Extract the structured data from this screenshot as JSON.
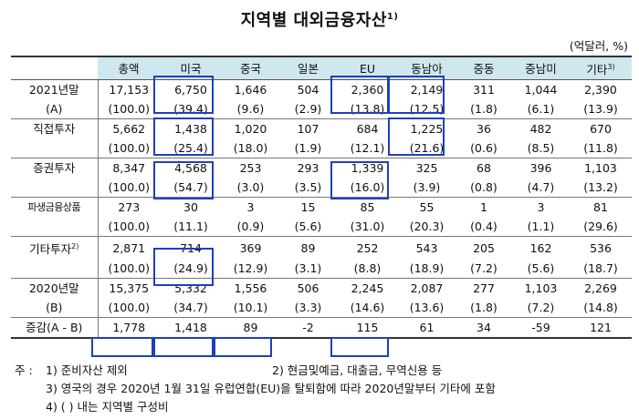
{
  "title": "지역별 대외금융자산",
  "title_sup": "1)",
  "unit": "(억달러, %)",
  "headers": [
    "총액",
    "미국",
    "중국",
    "일본",
    "EU",
    "동남아",
    "중동",
    "중남미",
    "기타"
  ],
  "headers_sup": [
    "",
    "",
    "",
    "",
    "",
    "",
    "",
    "",
    "3)"
  ],
  "rows": [
    {
      "label": "2021년말",
      "sup": "",
      "values": [
        "17,153",
        "6,750",
        "1,646",
        "504",
        "2,360",
        "2,149",
        "311",
        "1,044",
        "2,390"
      ]
    },
    {
      "label": "(A)",
      "sup": "",
      "values": [
        "(100.0)",
        "(39.4)",
        "(9.6)",
        "(2.9)",
        "(13.8)",
        "(12.5)",
        "(1.8)",
        "(6.1)",
        "(13.9)"
      ]
    },
    {
      "label": "직접투자",
      "sup": "",
      "values": [
        "5,662",
        "1,438",
        "1,020",
        "107",
        "684",
        "1,225",
        "36",
        "482",
        "670"
      ]
    },
    {
      "label": "",
      "sup": "",
      "values": [
        "(100.0)",
        "(25.4)",
        "(18.0)",
        "(1.9)",
        "(12.1)",
        "(21.6)",
        "(0.6)",
        "(8.5)",
        "(11.8)"
      ]
    },
    {
      "label": "증권투자",
      "sup": "",
      "values": [
        "8,347",
        "4,568",
        "253",
        "293",
        "1,339",
        "325",
        "68",
        "396",
        "1,103"
      ]
    },
    {
      "label": "",
      "sup": "",
      "values": [
        "(100.0)",
        "(54.7)",
        "(3.0)",
        "(3.5)",
        "(16.0)",
        "(3.9)",
        "(0.8)",
        "(4.7)",
        "(13.2)"
      ]
    },
    {
      "label": "파생금융상품",
      "sup": "",
      "values": [
        "273",
        "30",
        "3",
        "15",
        "85",
        "55",
        "1",
        "3",
        "81"
      ]
    },
    {
      "label": "",
      "sup": "",
      "values": [
        "(100.0)",
        "(11.1)",
        "(0.9)",
        "(5.6)",
        "(31.0)",
        "(20.3)",
        "(0.4)",
        "(1.1)",
        "(29.6)"
      ]
    },
    {
      "label": "기타투자",
      "sup": "2)",
      "values": [
        "2,871",
        "714",
        "369",
        "89",
        "252",
        "543",
        "205",
        "162",
        "536"
      ]
    },
    {
      "label": "",
      "sup": "",
      "values": [
        "(100.0)",
        "(24.9)",
        "(12.9)",
        "(3.1)",
        "(8.8)",
        "(18.9)",
        "(7.2)",
        "(5.6)",
        "(18.7)"
      ]
    },
    {
      "label": "2020년말",
      "sup": "",
      "values": [
        "15,375",
        "5,332",
        "1,556",
        "506",
        "2,245",
        "2,087",
        "277",
        "1,103",
        "2,269"
      ]
    },
    {
      "label": "(B)",
      "sup": "",
      "values": [
        "(100.0)",
        "(34.7)",
        "(10.1)",
        "(3.3)",
        "(14.6)",
        "(13.6)",
        "(1.8)",
        "(7.2)",
        "(14.8)"
      ]
    },
    {
      "label": "증감(A - B)",
      "sup": "",
      "values": [
        "1,778",
        "1,418",
        "89",
        "-2",
        "115",
        "61",
        "34",
        "-59",
        "121"
      ]
    }
  ],
  "notes": {
    "prefix": "주 :",
    "n1": "1) 준비자산 제외",
    "n2": "2) 현금및예금, 대출금, 무역신용 등",
    "n3": "3) 영국의 경우 2020년 1월 31일 유럽연합(EU)을 탈퇴함에 따라 2020년말부터 기타에 포함",
    "n4": "4) ( ) 내는 지역별 구성비"
  },
  "colors": {
    "header_bg": "#cfe7ee",
    "highlight_border": "#1f3fbf"
  }
}
